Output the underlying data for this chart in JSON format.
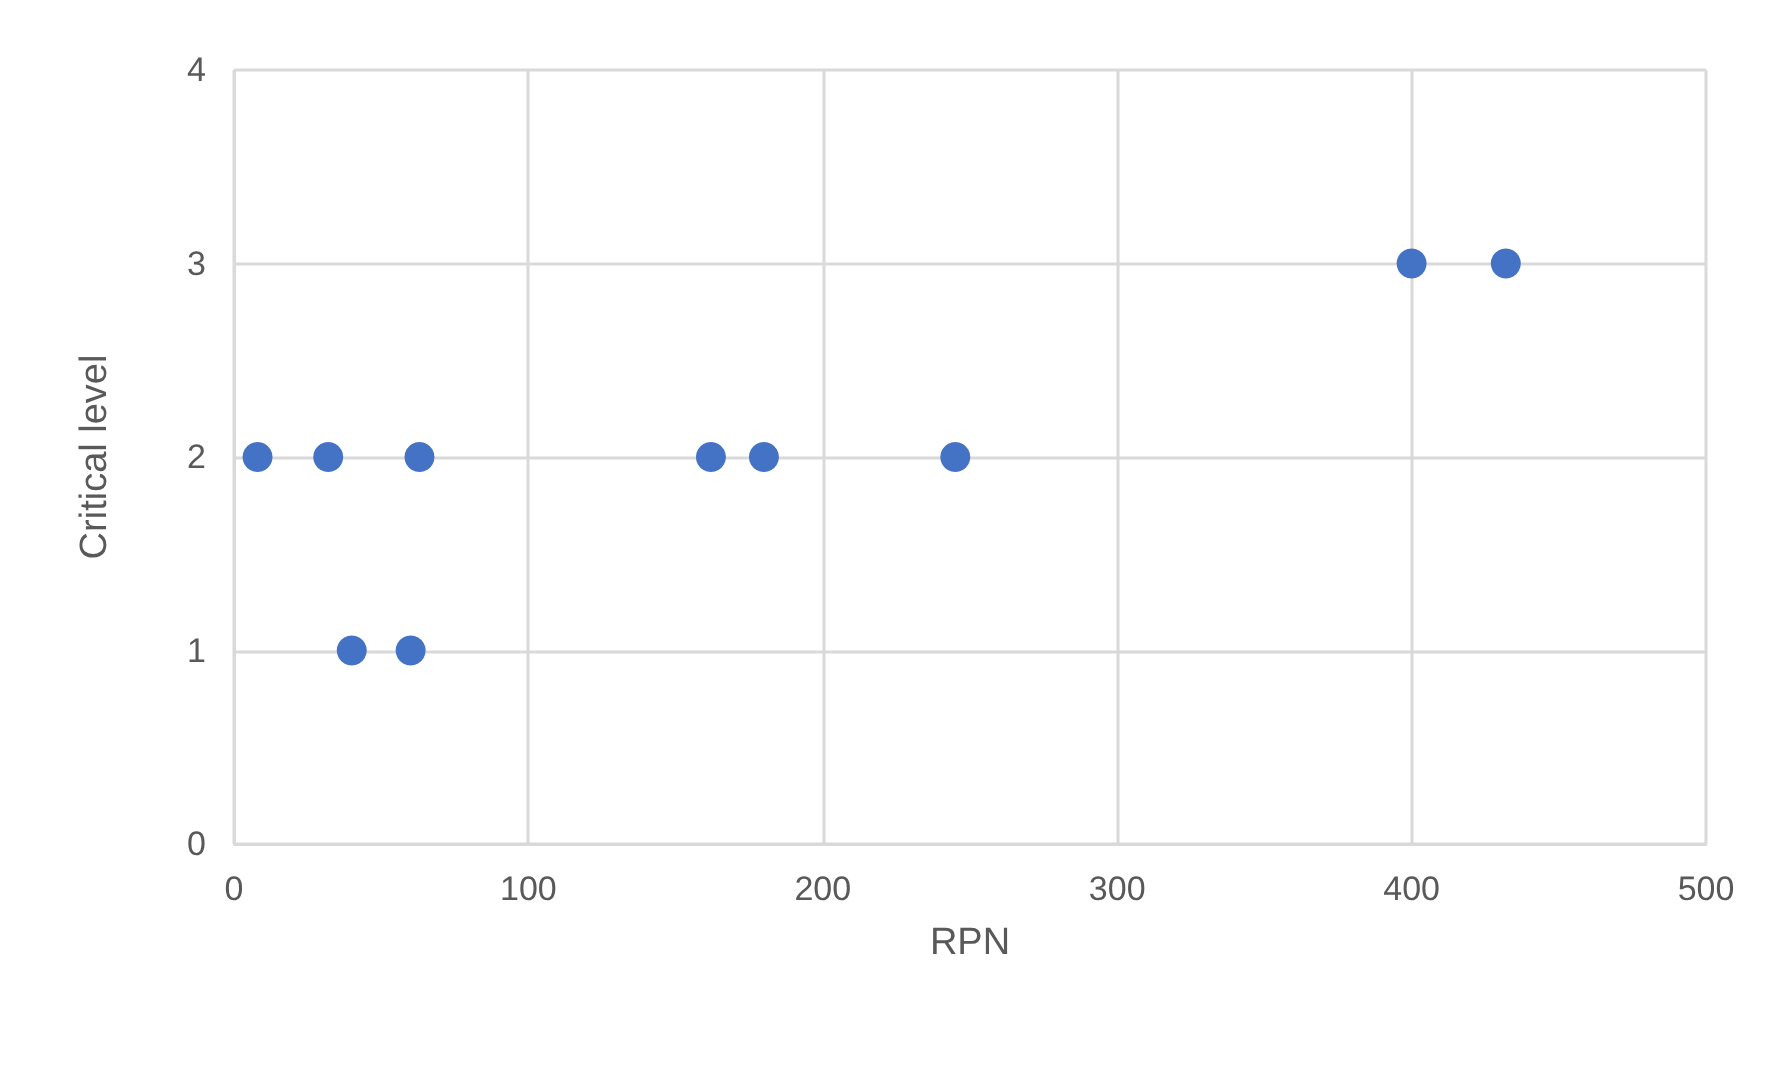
{
  "chart_data": {
    "type": "scatter",
    "xlabel": "RPN",
    "ylabel": "Critical level",
    "x": [
      8,
      32,
      63,
      40,
      60,
      162,
      180,
      245,
      400,
      432
    ],
    "values": [
      2,
      2,
      2,
      1,
      1,
      2,
      2,
      2,
      3,
      3
    ],
    "color": "#4472c4",
    "marker": "circle",
    "grid": true,
    "xlim": [
      0,
      500
    ],
    "xticks": [
      0,
      100,
      200,
      300,
      400,
      500
    ],
    "ylim": [
      0,
      4
    ],
    "yticks": [
      0,
      1,
      2,
      3,
      4
    ]
  }
}
